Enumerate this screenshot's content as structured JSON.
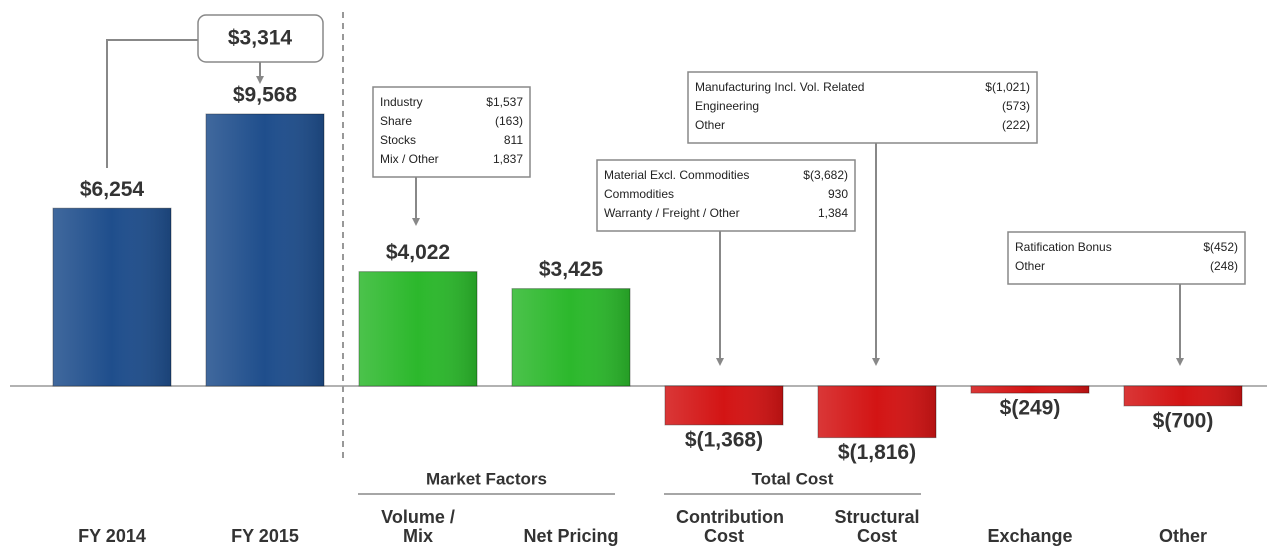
{
  "chart_data": {
    "type": "bar",
    "categories": [
      "FY 2014",
      "FY 2015",
      "Volume / Mix",
      "Net Pricing",
      "Contribution Cost",
      "Structural Cost",
      "Exchange",
      "Other"
    ],
    "values": [
      6254,
      9568,
      4022,
      3425,
      -1368,
      -1816,
      -249,
      -700
    ],
    "value_labels": [
      "$6,254",
      "$9,568",
      "$4,022",
      "$3,425",
      "$(1,368)",
      "$(1,816)",
      "$(249)",
      "$(700)"
    ],
    "colors": [
      "#1f4e8c",
      "#1f4e8c",
      "#2cb82c",
      "#2cb82c",
      "#d31414",
      "#d31414",
      "#d31414",
      "#d31414"
    ],
    "delta_label": "$3,314",
    "groups": [
      {
        "label": "Market Factors",
        "start": 2,
        "end": 3
      },
      {
        "label": "Total Cost",
        "start": 4,
        "end": 5
      }
    ],
    "annotations": [
      {
        "rows": [
          [
            "Industry",
            "$1,537"
          ],
          [
            "Share",
            "(163)"
          ],
          [
            "Stocks",
            "811"
          ],
          [
            "Mix / Other",
            "1,837"
          ]
        ]
      },
      {
        "rows": [
          [
            "Material Excl. Commodities",
            "$(3,682)"
          ],
          [
            "Commodities",
            "930"
          ],
          [
            "Warranty / Freight / Other",
            "1,384"
          ]
        ]
      },
      {
        "rows": [
          [
            "Manufacturing Incl. Vol. Related",
            "$(1,021)"
          ],
          [
            "Engineering",
            "(573)"
          ],
          [
            "Other",
            "(222)"
          ]
        ]
      },
      {
        "rows": [
          [
            "Ratification Bonus",
            "$(452)"
          ],
          [
            "Other",
            "(248)"
          ]
        ]
      }
    ]
  }
}
